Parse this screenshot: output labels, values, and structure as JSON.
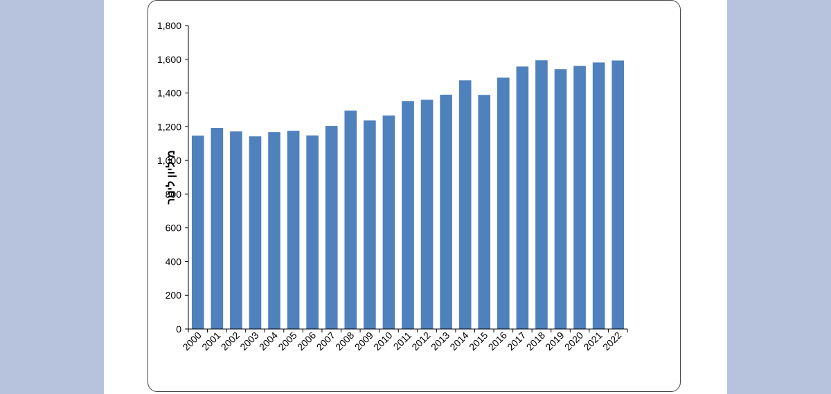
{
  "colors": {
    "side_background": "#b7c3dd",
    "bar": "#4f81bd",
    "axis": "#000000"
  },
  "chart_data": {
    "type": "bar",
    "categories": [
      "2000",
      "2001",
      "2002",
      "2003",
      "2004",
      "2005",
      "2006",
      "2007",
      "2008",
      "2009",
      "2010",
      "2011",
      "2012",
      "2013",
      "2014",
      "2015",
      "2016",
      "2017",
      "2018",
      "2019",
      "2020",
      "2021",
      "2022"
    ],
    "series": [
      {
        "values": [
          1147,
          1193,
          1172,
          1143,
          1168,
          1176,
          1148,
          1205,
          1296,
          1237,
          1266,
          1352,
          1360,
          1390,
          1475,
          1389,
          1491,
          1557,
          1594,
          1541,
          1561,
          1581,
          1593
        ]
      }
    ],
    "title": "",
    "xlabel": "",
    "ylabel": "מיליון ליטר",
    "ylim": [
      0,
      1800
    ],
    "yticks": [
      "0",
      "200",
      "400",
      "600",
      "800",
      "1,000",
      "1,200",
      "1,400",
      "1,600",
      "1,800"
    ],
    "grid": false,
    "legend": "none"
  }
}
